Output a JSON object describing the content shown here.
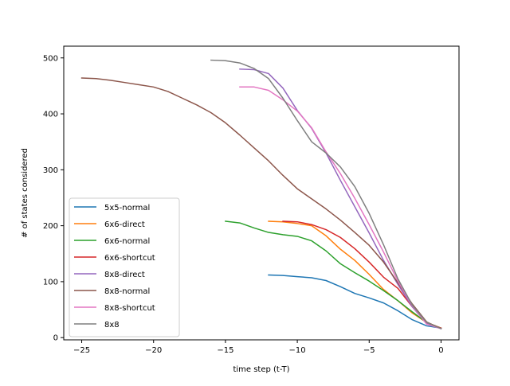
{
  "chart_data": {
    "type": "line",
    "title": "",
    "xlabel": "time step (t-T)",
    "ylabel": "# of states considered",
    "xlim": [
      -26.25,
      1.25
    ],
    "ylim": [
      -4,
      521
    ],
    "xticks": [
      -25,
      -20,
      -15,
      -10,
      -5,
      0
    ],
    "xtick_labels": [
      "−25",
      "−20",
      "−15",
      "−10",
      "−5",
      "0"
    ],
    "yticks": [
      0,
      100,
      200,
      300,
      400,
      500
    ],
    "ytick_labels": [
      "0",
      "100",
      "200",
      "300",
      "400",
      "500"
    ],
    "grid": false,
    "legend_position": "lower-left",
    "series": [
      {
        "name": "5x5-normal",
        "color": "#1f77b4",
        "x": [
          -12,
          -11,
          -10,
          -9,
          -8,
          -7,
          -6,
          -5,
          -4,
          -3,
          -2,
          -1,
          0
        ],
        "y": [
          112,
          111,
          109,
          107,
          102,
          91,
          79,
          71,
          62,
          48,
          32,
          21,
          17
        ]
      },
      {
        "name": "6x6-direct",
        "color": "#ff7f0e",
        "x": [
          -12,
          -11,
          -10,
          -9,
          -8,
          -7,
          -6,
          -5,
          -4,
          -3,
          -2,
          -1,
          0
        ],
        "y": [
          208,
          207,
          204,
          200,
          182,
          158,
          138,
          113,
          86,
          66,
          44,
          27,
          17
        ]
      },
      {
        "name": "6x6-normal",
        "color": "#2ca02c",
        "x": [
          -15,
          -14,
          -13,
          -12,
          -11,
          -10,
          -9,
          -8,
          -7,
          -6,
          -5,
          -4,
          -3,
          -2,
          -1,
          0
        ],
        "y": [
          208,
          205,
          196,
          188,
          184,
          181,
          173,
          155,
          132,
          116,
          101,
          84,
          66,
          46,
          27,
          17
        ]
      },
      {
        "name": "6x6-shortcut",
        "color": "#d62728",
        "x": [
          -11,
          -10,
          -9,
          -8,
          -7,
          -6,
          -5,
          -4,
          -3,
          -2,
          -1,
          0
        ],
        "y": [
          208,
          207,
          202,
          193,
          179,
          159,
          135,
          108,
          88,
          55,
          27,
          17
        ]
      },
      {
        "name": "8x8-direct",
        "color": "#9467bd",
        "x": [
          -14,
          -13,
          -12,
          -11,
          -10,
          -9,
          -8,
          -7,
          -6,
          -5,
          -4,
          -3,
          -2,
          -1,
          0
        ],
        "y": [
          480,
          479,
          472,
          446,
          406,
          374,
          330,
          281,
          234,
          187,
          138,
          95,
          55,
          25,
          16
        ]
      },
      {
        "name": "8x8-normal",
        "color": "#8c564b",
        "x": [
          -25,
          -24,
          -23,
          -22,
          -21,
          -20,
          -19,
          -18,
          -17,
          -16,
          -15,
          -14,
          -13,
          -12,
          -11,
          -10,
          -9,
          -8,
          -7,
          -6,
          -5,
          -4,
          -3,
          -2,
          -1,
          0
        ],
        "y": [
          464,
          463,
          460,
          456,
          452,
          448,
          440,
          428,
          416,
          402,
          384,
          362,
          339,
          316,
          290,
          266,
          248,
          230,
          210,
          188,
          165,
          135,
          98,
          60,
          28,
          16
        ]
      },
      {
        "name": "8x8-shortcut",
        "color": "#e377c2",
        "x": [
          -14,
          -13,
          -12,
          -11,
          -10,
          -9,
          -8,
          -7,
          -6,
          -5,
          -4,
          -3,
          -2,
          -1,
          0
        ],
        "y": [
          448,
          448,
          442,
          425,
          405,
          375,
          332,
          293,
          249,
          202,
          153,
          101,
          57,
          24,
          16
        ]
      },
      {
        "name": "8x8",
        "color": "#7f7f7f",
        "x": [
          -16,
          -15,
          -14,
          -13,
          -12,
          -11,
          -10,
          -9,
          -8,
          -7,
          -6,
          -5,
          -4,
          -3,
          -2,
          -1,
          0
        ],
        "y": [
          496,
          495,
          491,
          481,
          463,
          428,
          388,
          350,
          330,
          305,
          270,
          222,
          166,
          105,
          58,
          27,
          16
        ]
      }
    ]
  }
}
